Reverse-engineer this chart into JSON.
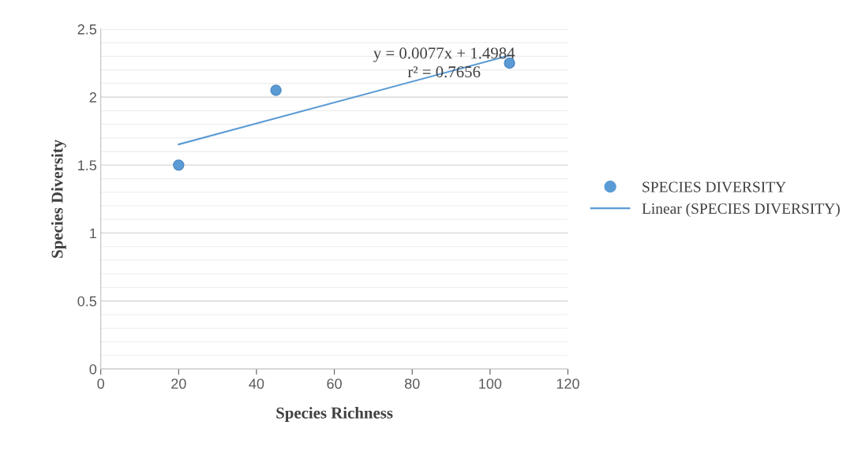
{
  "chart_data": {
    "type": "scatter",
    "xlabel": "Species Richness",
    "ylabel": "Species Diversity",
    "xlim": [
      0,
      120
    ],
    "xticks": [
      0,
      20,
      40,
      60,
      80,
      100,
      120
    ],
    "ylim": [
      0,
      2.5
    ],
    "yticks": [
      0,
      0.5,
      1,
      1.5,
      2,
      2.5
    ],
    "grid": "y",
    "legend": "right",
    "annotations": [
      "y = 0.0077x + 1.4984",
      "r² = 0.7656"
    ],
    "series": [
      {
        "name": "SPECIES DIVERSITY",
        "marker": "circle",
        "color": "#5b9bd5",
        "x": [
          20,
          45,
          105
        ],
        "values": [
          1.5,
          2.05,
          2.25
        ]
      },
      {
        "name": "Linear (SPECIES DIVERSITY)",
        "type": "line",
        "color": "#5b9bd5",
        "x": [
          20,
          105
        ],
        "values": [
          1.652,
          2.307
        ]
      }
    ]
  }
}
